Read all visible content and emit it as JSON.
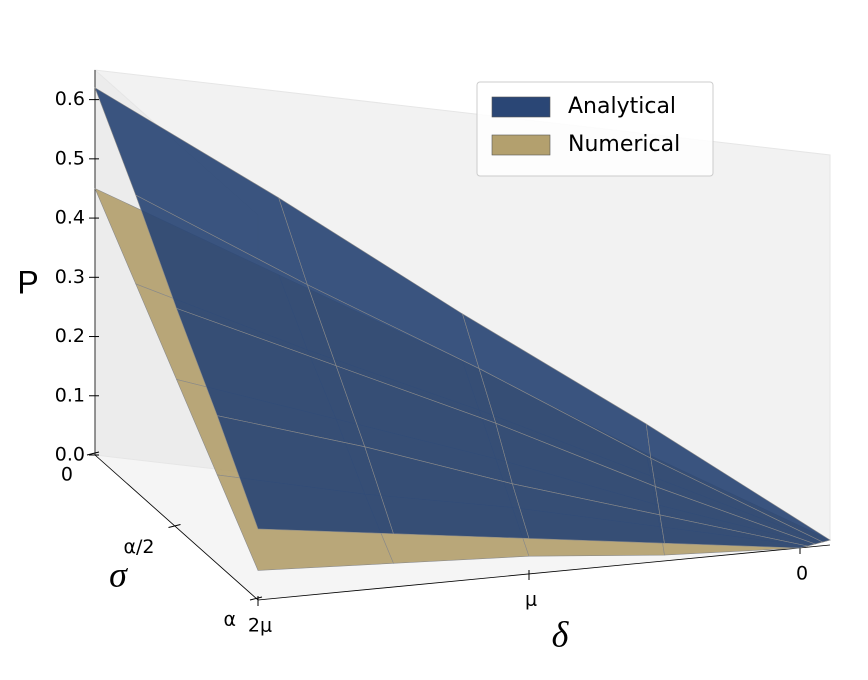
{
  "chart_data": {
    "type": "surface",
    "x_label": "δ",
    "y_label": "σ",
    "z_label": "P",
    "x": [
      2,
      1.5,
      1,
      0.5,
      0
    ],
    "y": [
      0,
      0.25,
      0.5,
      0.75,
      1
    ],
    "xlim": [
      2,
      0
    ],
    "ylim": [
      0,
      1
    ],
    "zlim": [
      0,
      0.65
    ],
    "xticks": [
      {
        "value": 2,
        "label": "2μ"
      },
      {
        "value": 1,
        "label": "μ"
      },
      0
    ],
    "yticks": [
      0,
      {
        "value": 0.5,
        "label": "α/2"
      },
      {
        "value": 1,
        "label": "α"
      }
    ],
    "zticks": [
      {
        "value": 0,
        "label": "0.0"
      },
      0.1,
      0.2,
      0.3,
      0.4,
      0.5,
      0.6
    ],
    "legend": "upper right",
    "series": [
      {
        "name": "Numerical",
        "color": "#b3a06e",
        "values": [
          [
            0.45,
            0.34,
            0.23,
            0.11,
            0
          ],
          [
            0.35,
            0.26,
            0.18,
            0.09,
            0
          ],
          [
            0.25,
            0.19,
            0.13,
            0.06,
            0
          ],
          [
            0.15,
            0.11,
            0.08,
            0.04,
            0
          ],
          [
            0.05,
            0.04,
            0.03,
            0.01,
            0
          ]
        ]
      },
      {
        "name": "Analytical",
        "color": "#2a4675",
        "values": [
          [
            0.62,
            0.47,
            0.31,
            0.16,
            0
          ],
          [
            0.5,
            0.37,
            0.25,
            0.12,
            0
          ],
          [
            0.37,
            0.28,
            0.19,
            0.09,
            0
          ],
          [
            0.25,
            0.19,
            0.12,
            0.06,
            0
          ],
          [
            0.12,
            0.09,
            0.06,
            0.03,
            0
          ]
        ]
      }
    ]
  }
}
